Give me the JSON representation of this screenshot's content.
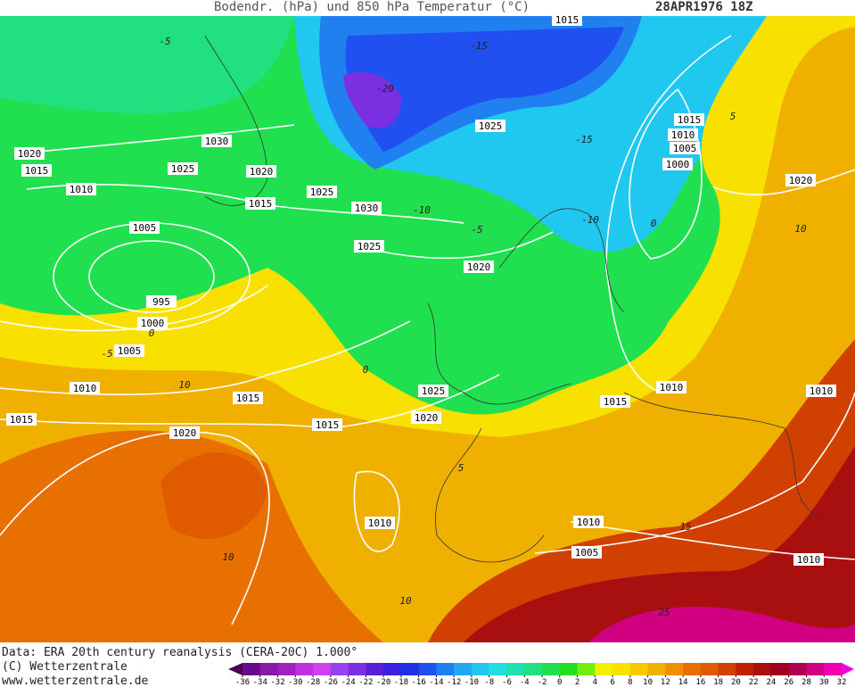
{
  "header": {
    "title": "Bodendr. (hPa) und 850 hPa Temperatur (°C)",
    "date": "28APR1976 18Z"
  },
  "footer": {
    "source": "Data: ERA 20th century reanalysis (CERA-20C) 1.000°",
    "copyright": "(C) Wetterzentrale",
    "url": "www.wetterzentrale.de"
  },
  "isobar_labels": [
    "1015",
    "1020",
    "1015",
    "1030",
    "1025",
    "1020",
    "1010",
    "1025",
    "1015",
    "1030",
    "1025",
    "1015",
    "1010",
    "1005",
    "1000",
    "1020",
    "1005",
    "1025",
    "1020",
    "995",
    "1000",
    "1005",
    "1010",
    "1015",
    "1025",
    "1020",
    "1015",
    "1010",
    "1010",
    "1015",
    "1015",
    "1020",
    "1010",
    "1010",
    "1005",
    "1010"
  ],
  "isotherm_labels": [
    "-5",
    "-15",
    "-20",
    "-15",
    "-10",
    "-5",
    "-10",
    "0",
    "5",
    "10",
    "0",
    "-5",
    "10",
    "0",
    "5",
    "10",
    "15",
    "10",
    "25"
  ],
  "colorbar": {
    "ticks": [
      -36,
      -34,
      -32,
      -30,
      -28,
      -26,
      -24,
      -22,
      -20,
      -18,
      -16,
      -14,
      -12,
      -10,
      -8,
      -6,
      -4,
      -2,
      0,
      2,
      4,
      6,
      8,
      10,
      12,
      14,
      16,
      18,
      20,
      22,
      24,
      26,
      28,
      30,
      32
    ],
    "colors": [
      "#4b0050",
      "#6a0a8a",
      "#8a1aa8",
      "#a020c0",
      "#c030e0",
      "#d040f0",
      "#9a40f0",
      "#7a30e0",
      "#5a20d8",
      "#3a20e0",
      "#2030e8",
      "#2050f0",
      "#2080f0",
      "#20a8f0",
      "#20c8f0",
      "#20e0e0",
      "#20e0b0",
      "#20e080",
      "#20e050",
      "#20e020",
      "#70f010",
      "#f0f000",
      "#f8e000",
      "#f8c800",
      "#f0b000",
      "#f09000",
      "#e87000",
      "#e05a00",
      "#d04000",
      "#c02000",
      "#a81010",
      "#a00020",
      "#b00050",
      "#d00080",
      "#f000b0",
      "#f000e0"
    ]
  }
}
